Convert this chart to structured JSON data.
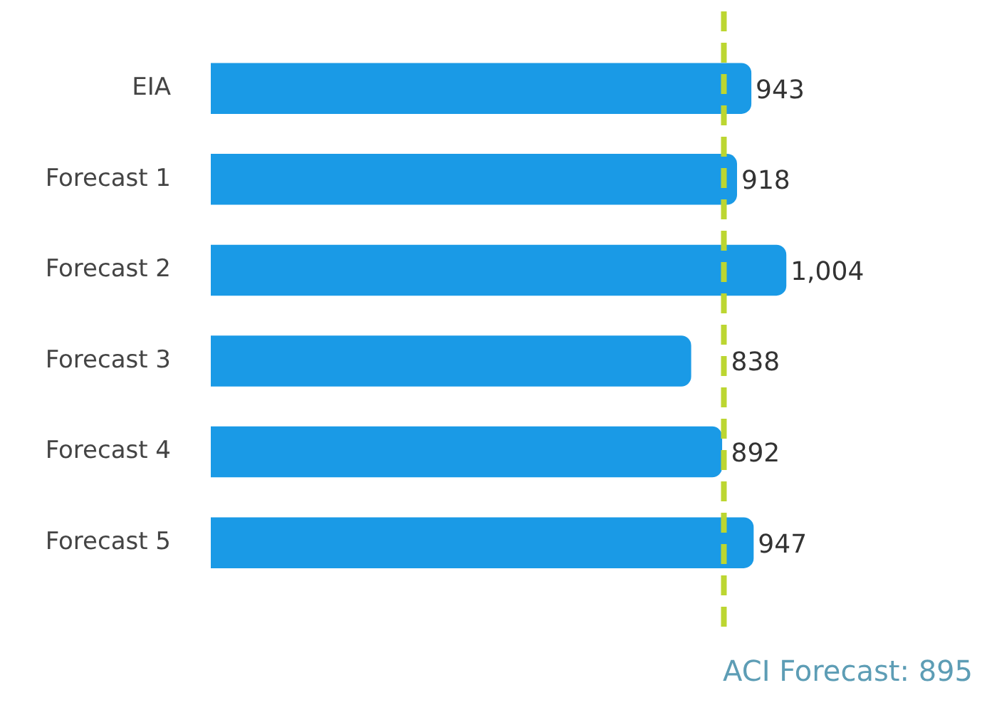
{
  "chart_data": {
    "type": "bar",
    "orientation": "horizontal",
    "categories": [
      "EIA",
      "Forecast 1",
      "Forecast 2",
      "Forecast 3",
      "Forecast 4",
      "Forecast 5"
    ],
    "values": [
      943,
      918,
      1004,
      838,
      892,
      947
    ],
    "color": "#1a9ae6",
    "data_labels": true,
    "value_labels": [
      "943",
      "918",
      "1,004",
      "838",
      "892",
      "947"
    ],
    "tick_labels": "y",
    "legend": false,
    "ref_lines": [
      {
        "axis": "x",
        "value": 895,
        "label": "ACI Forecast: 895",
        "color": "#bcd631",
        "line_style": "dashed"
      }
    ]
  }
}
